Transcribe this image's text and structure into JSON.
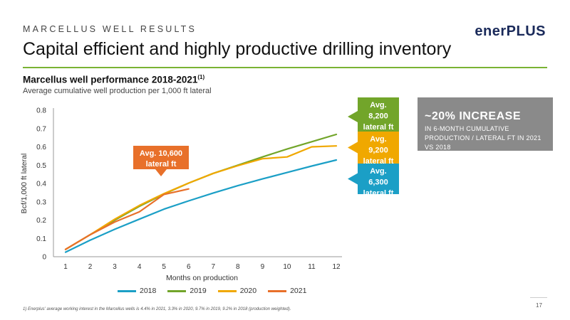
{
  "header": {
    "kicker": "MARCELLUS WELL RESULTS",
    "title": "Capital efficient and highly productive drilling inventory",
    "logo_part1": "ener",
    "logo_part2": "PLUS"
  },
  "chart_heading": {
    "title": "Marcellus well performance 2018-2021",
    "title_superscript": "(1)",
    "subtitle": "Average cumulative well production per 1,000 ft lateral"
  },
  "chart_data": {
    "type": "line",
    "xlabel": "Months on production",
    "ylabel": "Bcf/1,000 ft lateral",
    "x": [
      1,
      2,
      3,
      4,
      5,
      6,
      7,
      8,
      9,
      10,
      11,
      12
    ],
    "xlim": [
      1,
      12
    ],
    "ylim": [
      0,
      0.8
    ],
    "yticks": [
      0,
      0.1,
      0.2,
      0.3,
      0.4,
      0.5,
      0.6,
      0.7,
      0.8
    ],
    "ytick_labels": [
      "0",
      "0.1",
      "0.2",
      "0.3",
      "0.4",
      "0.5",
      "0.6",
      "0.7",
      "0.8"
    ],
    "grid": false,
    "legend_position": "bottom",
    "series": [
      {
        "name": "2018",
        "color": "#1b9fc6",
        "values": [
          0.025,
          0.09,
          0.15,
          0.205,
          0.26,
          0.305,
          0.348,
          0.388,
          0.425,
          0.46,
          0.495,
          0.528
        ]
      },
      {
        "name": "2019",
        "color": "#72a52a",
        "values": [
          0.04,
          0.12,
          0.2,
          0.275,
          0.342,
          0.402,
          0.455,
          0.5,
          0.545,
          0.588,
          0.628,
          0.668
        ]
      },
      {
        "name": "2020",
        "color": "#f0a800",
        "values": [
          0.04,
          0.12,
          0.205,
          0.28,
          0.345,
          0.402,
          0.455,
          0.497,
          0.535,
          0.545,
          0.6,
          0.605
        ]
      },
      {
        "name": "2021",
        "color": "#e8702a",
        "values": [
          0.04,
          0.12,
          0.19,
          0.245,
          0.34,
          0.37,
          null,
          null,
          null,
          null,
          null,
          null
        ]
      }
    ],
    "annotations": [
      {
        "id": "avg2021",
        "line1": "Avg. 10,600",
        "line2": "lateral ft",
        "color": "#e8702a"
      },
      {
        "id": "avg2019",
        "line1": "Avg.",
        "line2": "8,200",
        "line3": "lateral ft",
        "color": "#72a52a"
      },
      {
        "id": "avg2020",
        "line1": "Avg.",
        "line2": "9,200",
        "line3": "lateral ft",
        "color": "#f0a800"
      },
      {
        "id": "avg2018",
        "line1": "Avg.",
        "line2": "6,300",
        "line3": "lateral ft",
        "color": "#1b9fc6"
      }
    ]
  },
  "increase_box": {
    "headline": "~20% INCREASE",
    "detail": "IN 6-MONTH CUMULATIVE PRODUCTION / LATERAL FT IN 2021 VS 2018"
  },
  "footnote": "1)   Enerplus' average working interest in the Marcellus wells is 4.4% in 2021, 3.3% in 2020, 9.7% in 2019, 9.2% in 2018 (production weighted).",
  "page_number": "17"
}
